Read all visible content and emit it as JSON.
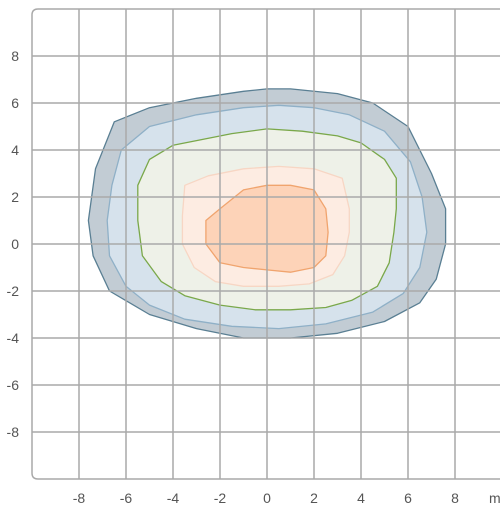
{
  "chart_data": {
    "type": "contour",
    "title": "",
    "xlabel": "",
    "ylabel": "",
    "x_unit_label": "m",
    "xlim": [
      -10,
      10
    ],
    "ylim": [
      -10,
      10
    ],
    "x_ticks": [
      -8,
      -6,
      -4,
      -2,
      0,
      2,
      4,
      6,
      8
    ],
    "y_ticks": [
      8,
      6,
      4,
      2,
      0,
      -2,
      -4,
      -6,
      -8
    ],
    "x_tick_labels": [
      "-8",
      "-6",
      "-4",
      "-2",
      "0",
      "2",
      "4",
      "6",
      "8"
    ],
    "y_tick_labels": [
      "8",
      "6",
      "4",
      "2",
      "0",
      "-2",
      "-4",
      "-6",
      "-8"
    ],
    "grid": true,
    "levels": [
      {
        "fill": "#c2ccd4",
        "stroke": "#5a7f93",
        "points": [
          [
            -7.3,
            3.2
          ],
          [
            -6.5,
            5.2
          ],
          [
            -5,
            5.8
          ],
          [
            -3,
            6.2
          ],
          [
            -1,
            6.5
          ],
          [
            0,
            6.6
          ],
          [
            1,
            6.6
          ],
          [
            3,
            6.4
          ],
          [
            4.5,
            6.0
          ],
          [
            6,
            5.0
          ],
          [
            7,
            3.0
          ],
          [
            7.6,
            1.5
          ],
          [
            7.6,
            0
          ],
          [
            7.2,
            -1.5
          ],
          [
            6.5,
            -2.5
          ],
          [
            5.0,
            -3.3
          ],
          [
            3.0,
            -3.8
          ],
          [
            1.0,
            -4.0
          ],
          [
            -1.0,
            -4.0
          ],
          [
            -3.0,
            -3.6
          ],
          [
            -5.0,
            -3.0
          ],
          [
            -6.7,
            -2.0
          ],
          [
            -7.4,
            -0.5
          ],
          [
            -7.6,
            1.0
          ]
        ]
      },
      {
        "fill": "#d6e2ec",
        "stroke": "#8fb0c7",
        "points": [
          [
            -6.2,
            4.0
          ],
          [
            -5.0,
            5.0
          ],
          [
            -3.0,
            5.5
          ],
          [
            -1.0,
            5.8
          ],
          [
            0.5,
            5.9
          ],
          [
            2.0,
            5.8
          ],
          [
            3.5,
            5.5
          ],
          [
            5.0,
            4.8
          ],
          [
            6.1,
            3.5
          ],
          [
            6.6,
            2.0
          ],
          [
            6.8,
            0.5
          ],
          [
            6.5,
            -1.0
          ],
          [
            5.8,
            -2.1
          ],
          [
            4.5,
            -2.9
          ],
          [
            2.5,
            -3.4
          ],
          [
            0.5,
            -3.6
          ],
          [
            -1.5,
            -3.5
          ],
          [
            -3.5,
            -3.2
          ],
          [
            -5.0,
            -2.6
          ],
          [
            -6.0,
            -1.8
          ],
          [
            -6.7,
            -0.5
          ],
          [
            -6.8,
            1.0
          ],
          [
            -6.6,
            2.5
          ]
        ]
      },
      {
        "fill": "#eef1e8",
        "stroke": "#7aa84a",
        "points": [
          [
            -5.0,
            3.6
          ],
          [
            -4.0,
            4.2
          ],
          [
            -3.0,
            4.4
          ],
          [
            -1.5,
            4.7
          ],
          [
            0.0,
            4.9
          ],
          [
            1.5,
            4.8
          ],
          [
            3.0,
            4.6
          ],
          [
            4.0,
            4.3
          ],
          [
            5.0,
            3.6
          ],
          [
            5.5,
            2.8
          ],
          [
            5.5,
            1.5
          ],
          [
            5.4,
            0.5
          ],
          [
            5.2,
            -0.8
          ],
          [
            4.7,
            -1.8
          ],
          [
            3.6,
            -2.4
          ],
          [
            2.5,
            -2.7
          ],
          [
            1.0,
            -2.8
          ],
          [
            -0.5,
            -2.8
          ],
          [
            -2.0,
            -2.6
          ],
          [
            -3.5,
            -2.2
          ],
          [
            -4.5,
            -1.6
          ],
          [
            -5.3,
            -0.5
          ],
          [
            -5.5,
            1.0
          ],
          [
            -5.5,
            2.5
          ]
        ]
      },
      {
        "fill": "#fdece2",
        "stroke": "#f7d6c4",
        "points": [
          [
            -3.5,
            2.5
          ],
          [
            -2.5,
            2.9
          ],
          [
            -1.0,
            3.2
          ],
          [
            0.5,
            3.3
          ],
          [
            2.0,
            3.2
          ],
          [
            3.2,
            2.8
          ],
          [
            3.5,
            1.5
          ],
          [
            3.5,
            0.5
          ],
          [
            3.3,
            -0.5
          ],
          [
            2.8,
            -1.3
          ],
          [
            1.8,
            -1.7
          ],
          [
            0.5,
            -1.8
          ],
          [
            -1.0,
            -1.8
          ],
          [
            -2.2,
            -1.6
          ],
          [
            -3.1,
            -1.0
          ],
          [
            -3.6,
            0.0
          ],
          [
            -3.6,
            1.2
          ]
        ]
      },
      {
        "fill": "#fdd3b8",
        "stroke": "#f0a46e",
        "points": [
          [
            -2.0,
            1.5
          ],
          [
            -1.0,
            2.3
          ],
          [
            0.0,
            2.5
          ],
          [
            1.0,
            2.5
          ],
          [
            2.0,
            2.3
          ],
          [
            2.5,
            1.5
          ],
          [
            2.6,
            0.5
          ],
          [
            2.5,
            -0.5
          ],
          [
            2.0,
            -1.0
          ],
          [
            1.0,
            -1.2
          ],
          [
            0.0,
            -1.1
          ],
          [
            -1.0,
            -1.0
          ],
          [
            -2.0,
            -0.8
          ],
          [
            -2.6,
            0.0
          ],
          [
            -2.6,
            1.0
          ]
        ]
      }
    ]
  }
}
